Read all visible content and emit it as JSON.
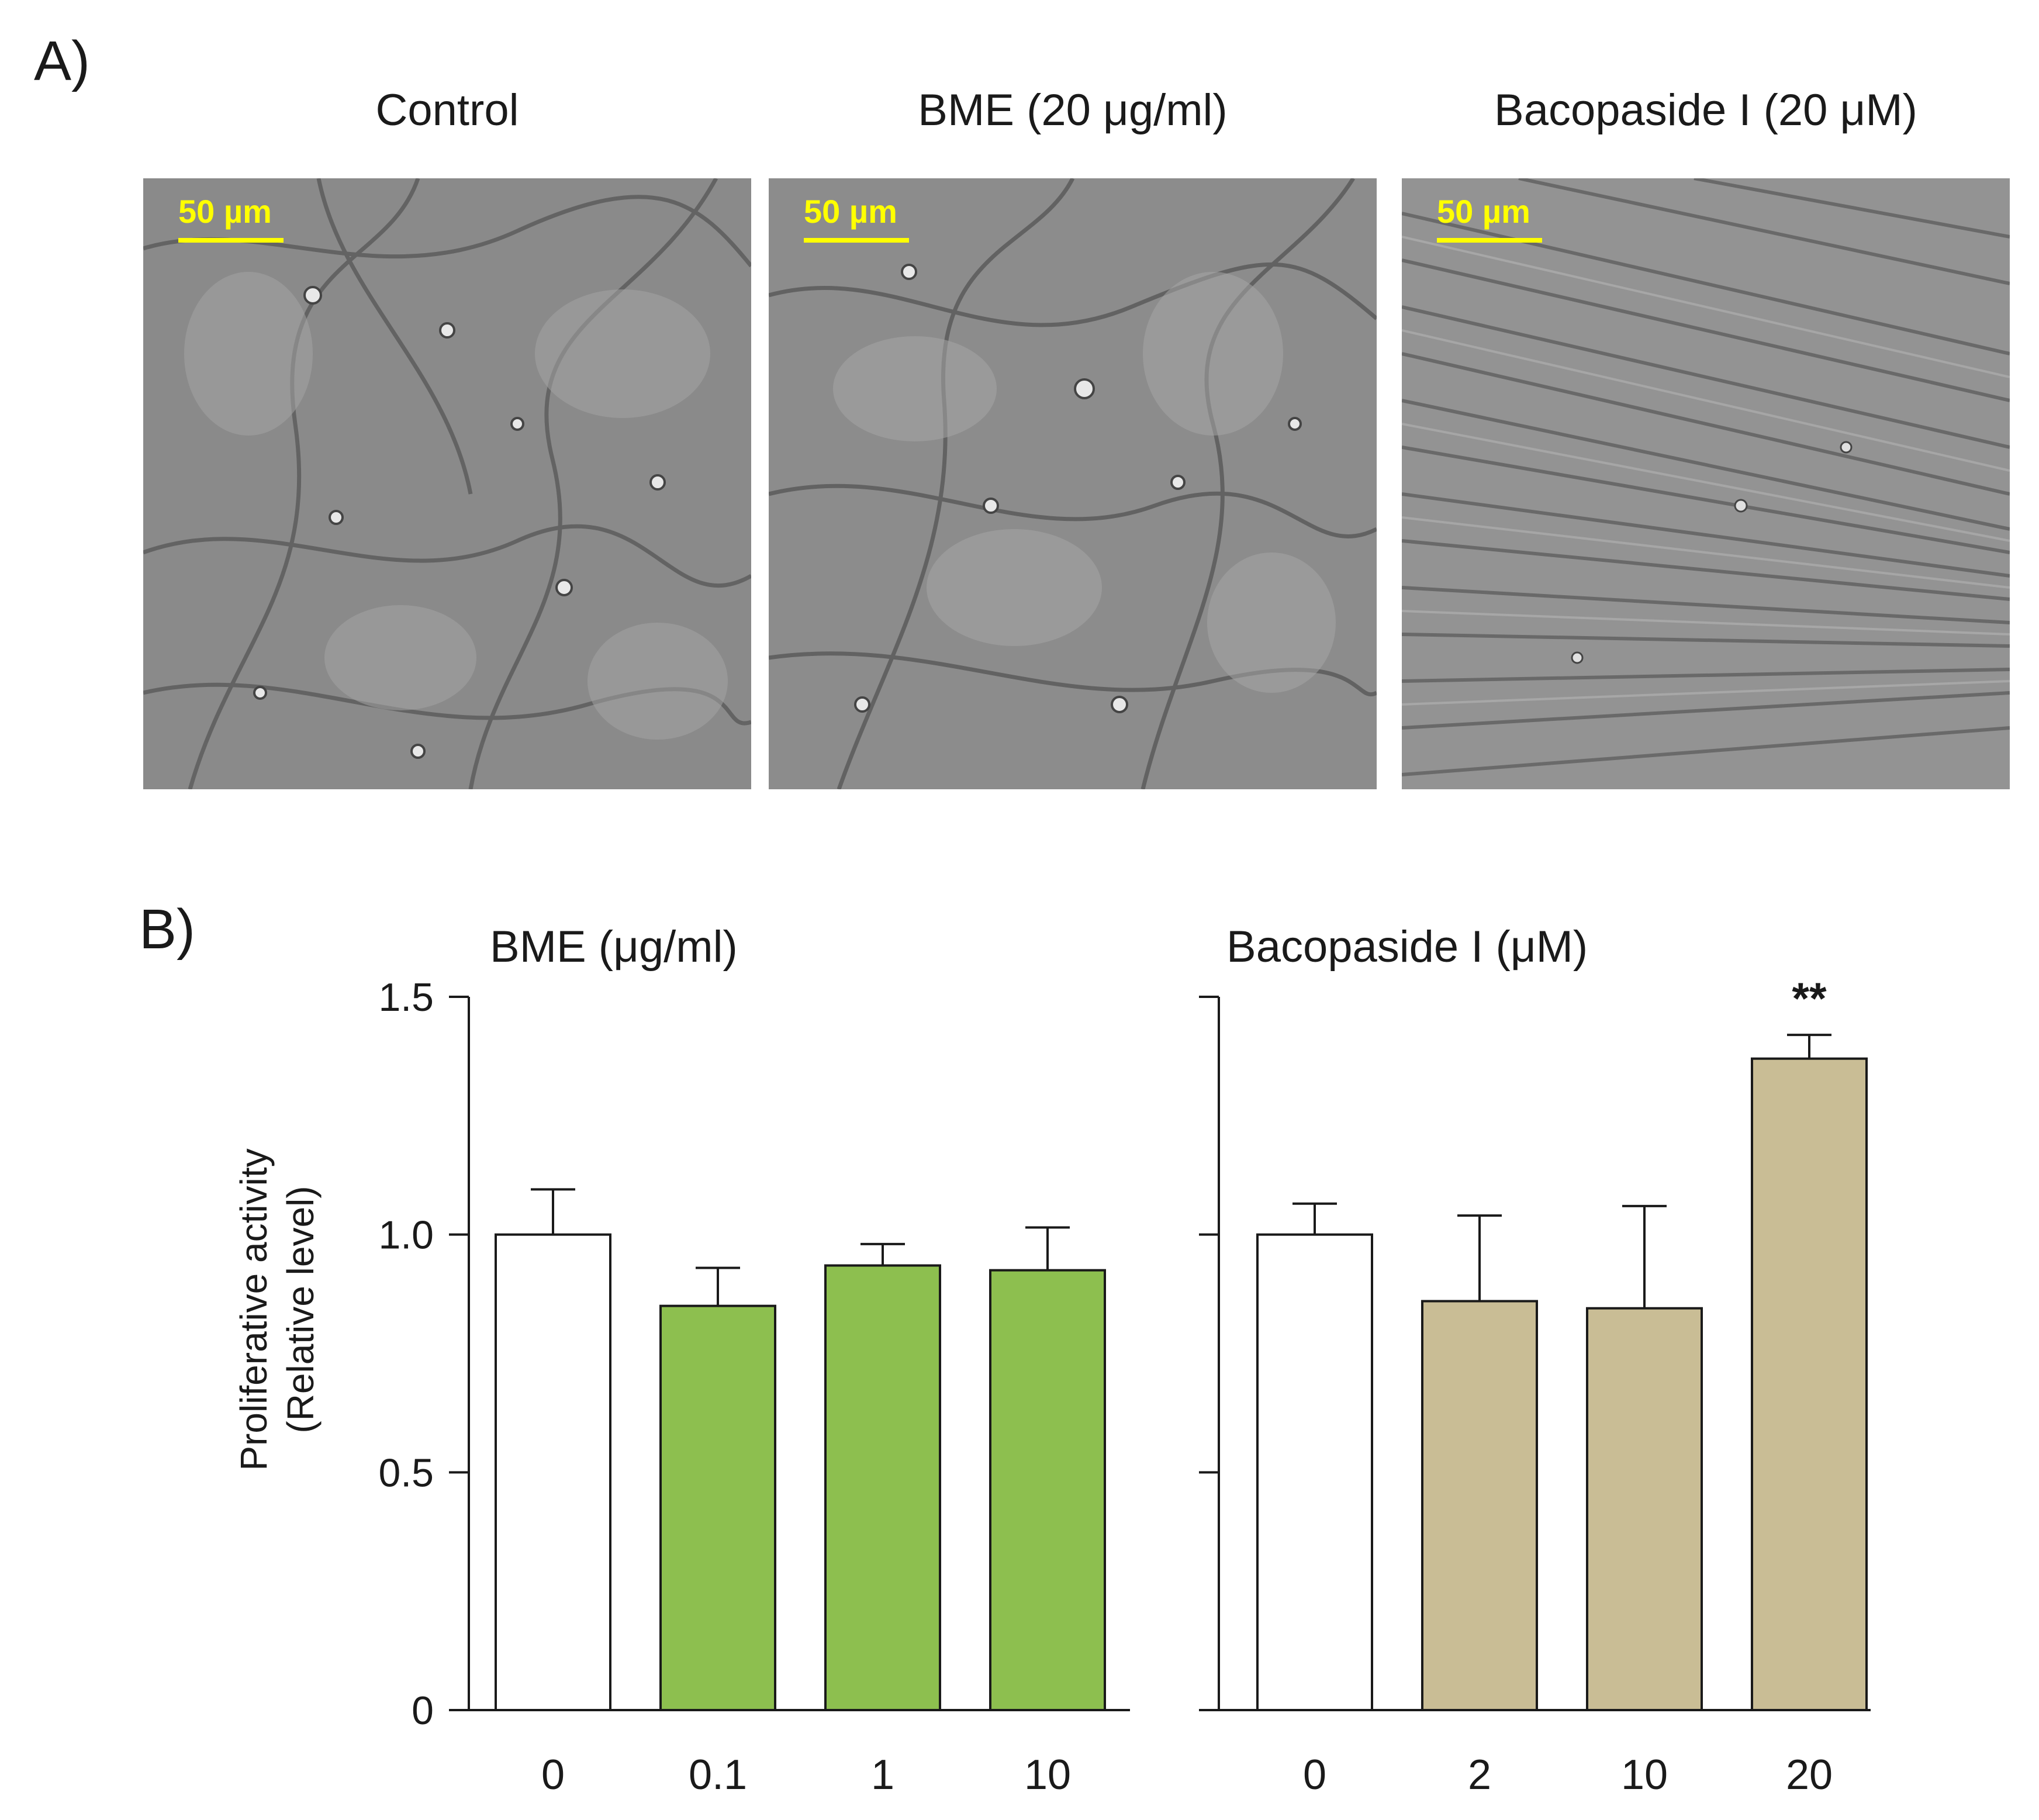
{
  "figure": {
    "panel_a_label": "A)",
    "panel_b_label": "B)",
    "panel_a": {
      "images": [
        {
          "title": "Control",
          "scale_label": "50 µm",
          "texture": "cell-culture-sparse-icon"
        },
        {
          "title": "BME (20 μg/ml)",
          "scale_label": "50 µm",
          "texture": "cell-culture-sparse-icon"
        },
        {
          "title": "Bacopaside I (20 μM)",
          "scale_label": "50 µm",
          "texture": "cell-culture-dense-icon"
        }
      ]
    }
  },
  "chart_data": {
    "type": "bar",
    "ylabel_line1": "Proliferative activity",
    "ylabel_line2": "(Relative level)",
    "ylim": [
      0,
      1.5
    ],
    "yticks": [
      "0",
      "0.5",
      "1.0",
      "1.5"
    ],
    "grid": false,
    "panels": [
      {
        "title": "BME (μg/ml)",
        "categories": [
          "0",
          "0.1",
          "1",
          "10"
        ],
        "values": [
          1.0,
          0.85,
          0.935,
          0.925
        ],
        "errors": [
          0.095,
          0.08,
          0.045,
          0.09
        ],
        "colors": [
          "#ffffff",
          "#8dbf4f",
          "#8dbf4f",
          "#8dbf4f"
        ],
        "annotations": [
          "",
          "",
          "",
          ""
        ]
      },
      {
        "title": "Bacopaside I (μM)",
        "categories": [
          "0",
          "2",
          "10",
          "20"
        ],
        "values": [
          1.0,
          0.86,
          0.845,
          1.37
        ],
        "errors": [
          0.065,
          0.18,
          0.215,
          0.05
        ],
        "colors": [
          "#ffffff",
          "#c9bd95",
          "#c9bd95",
          "#c9bd95"
        ],
        "annotations": [
          "",
          "",
          "",
          "**"
        ]
      }
    ]
  }
}
